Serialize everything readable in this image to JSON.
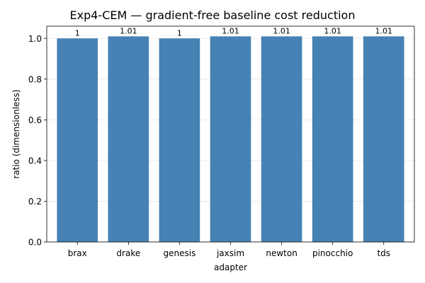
{
  "chart_data": {
    "type": "bar",
    "title": "Exp4-CEM — gradient-free baseline cost reduction",
    "xlabel": "adapter",
    "ylabel": "ratio (dimensionless)",
    "categories": [
      "brax",
      "drake",
      "genesis",
      "jaxsim",
      "newton",
      "pinocchio",
      "tds"
    ],
    "values": [
      1.0,
      1.01,
      1.0,
      1.01,
      1.01,
      1.01,
      1.01
    ],
    "data_labels": [
      "1",
      "1.01",
      "1",
      "1.01",
      "1.01",
      "1.01",
      "1.01"
    ],
    "ylim": [
      0,
      1.06
    ],
    "yticks": [
      0.0,
      0.2,
      0.4,
      0.6,
      0.8,
      1.0
    ],
    "ytick_labels": [
      "0.0",
      "0.2",
      "0.4",
      "0.6",
      "0.8",
      "1.0"
    ],
    "grid": "horizontal",
    "bar_color": "#4682b4"
  }
}
